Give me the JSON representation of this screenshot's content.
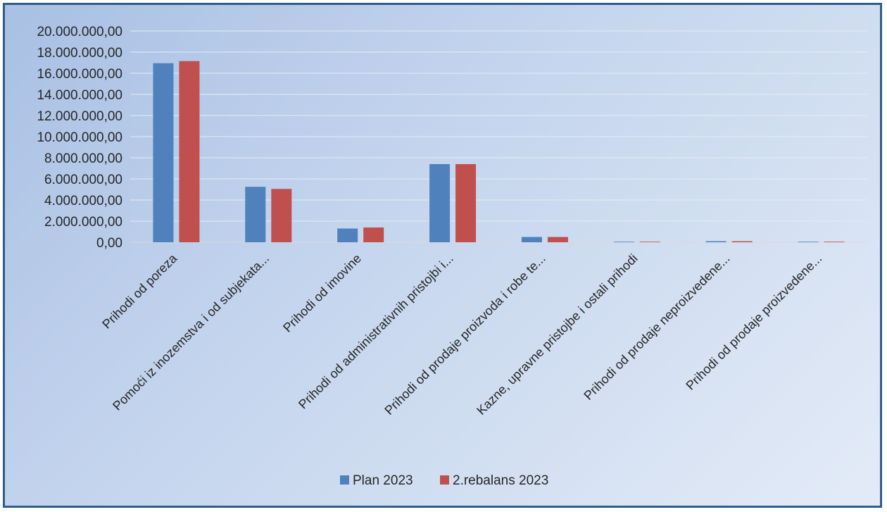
{
  "chart_data": {
    "type": "bar",
    "title": "",
    "xlabel": "",
    "ylabel": "",
    "categories": [
      "Prihodi od poreza",
      "Pomoći iz inozemstva i od subjekata...",
      "Prihodi od imovine",
      "Prihodi od administrativnih pristojbi i...",
      "Prihodi od prodaje proizvoda i robe te...",
      "Kazne, upravne pristojbe i ostali prihodi",
      "Prihodi od prodaje neproizvedene...",
      "Prihodi od prodaje proizvedene..."
    ],
    "series": [
      {
        "name": "Plan 2023",
        "color": "#4f81bd",
        "values": [
          16950000,
          5250000,
          1300000,
          7400000,
          500000,
          50000,
          100000,
          10000
        ]
      },
      {
        "name": "2.rebalans 2023",
        "color": "#c0504d",
        "values": [
          17150000,
          5050000,
          1400000,
          7400000,
          500000,
          50000,
          100000,
          10000
        ]
      }
    ],
    "ylim": [
      0,
      20000000
    ],
    "y_ticks": [
      0,
      2000000,
      4000000,
      6000000,
      8000000,
      10000000,
      12000000,
      14000000,
      16000000,
      18000000,
      20000000
    ],
    "y_tick_labels": [
      "0,00",
      "2.000.000,00",
      "4.000.000,00",
      "6.000.000,00",
      "8.000.000,00",
      "10.000.000,00",
      "12.000.000,00",
      "14.000.000,00",
      "16.000.000,00",
      "18.000.000,00",
      "20.000.000,00"
    ],
    "grid": true,
    "legend_position": "bottom"
  }
}
